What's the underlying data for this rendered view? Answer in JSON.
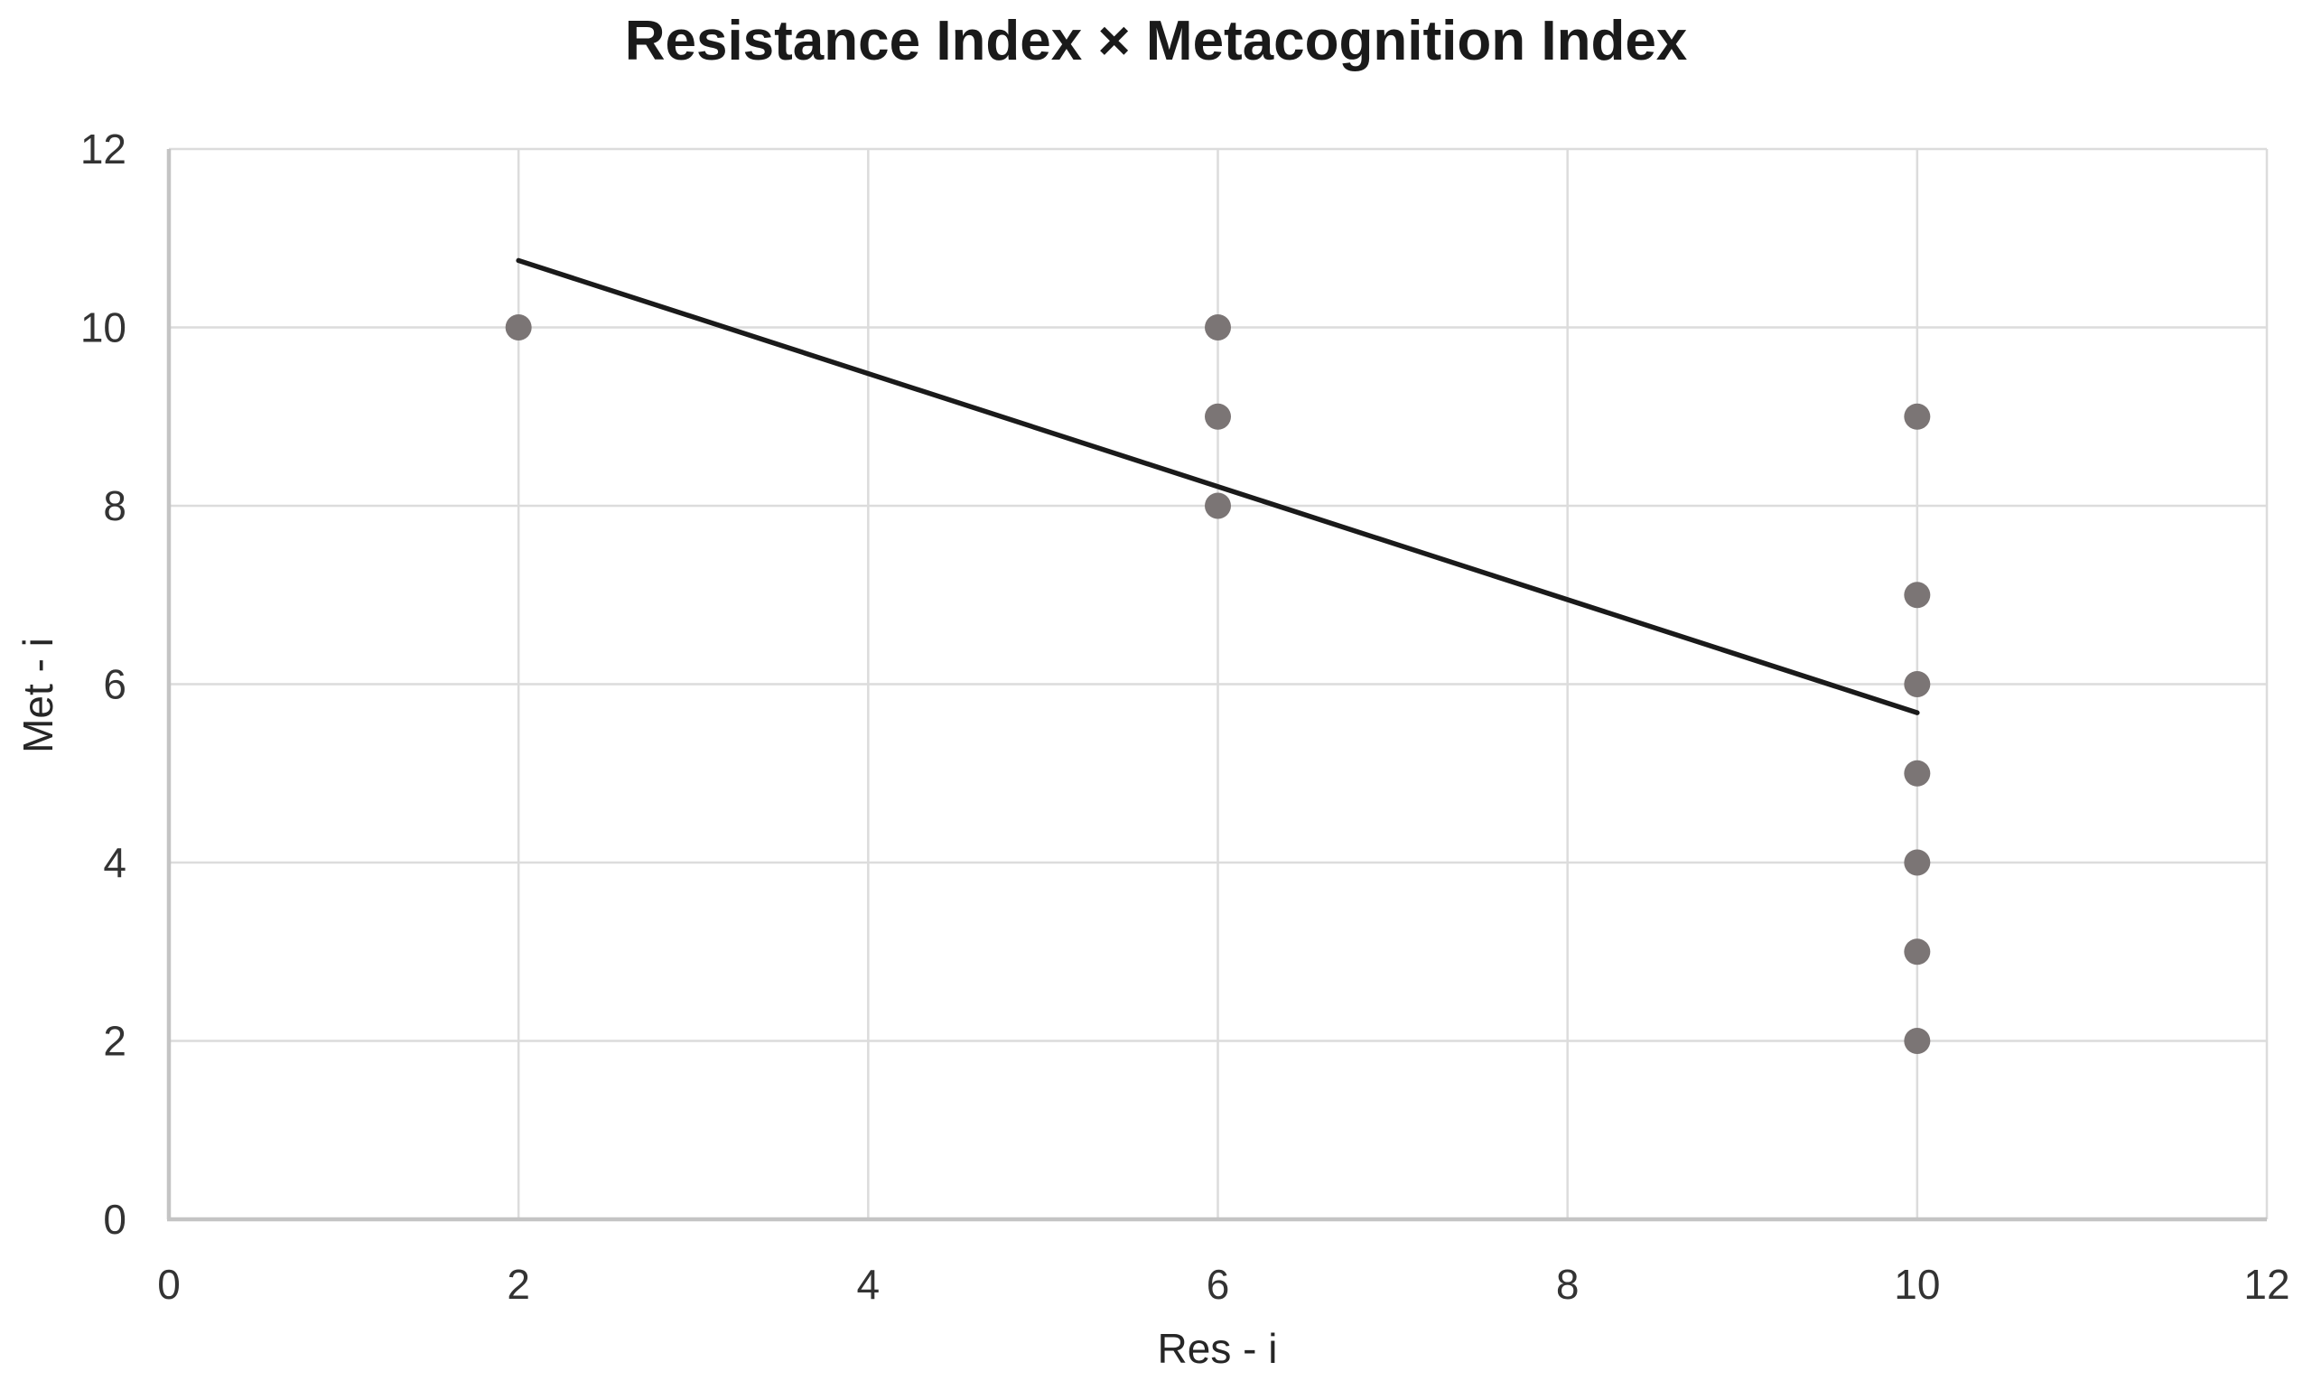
{
  "chart_data": {
    "type": "scatter",
    "title": "Resistance Index × Metacognition Index",
    "xlabel": "Res - i",
    "ylabel": "Met - i",
    "xlim": [
      0,
      12
    ],
    "ylim": [
      0,
      12
    ],
    "xticks": [
      0,
      2,
      4,
      6,
      8,
      10,
      12
    ],
    "yticks": [
      0,
      2,
      4,
      6,
      8,
      10,
      12
    ],
    "grid": true,
    "legend": "none",
    "points": [
      {
        "x": 2,
        "y": 10
      },
      {
        "x": 6,
        "y": 8
      },
      {
        "x": 6,
        "y": 9
      },
      {
        "x": 6,
        "y": 10
      },
      {
        "x": 10,
        "y": 2
      },
      {
        "x": 10,
        "y": 3
      },
      {
        "x": 10,
        "y": 4
      },
      {
        "x": 10,
        "y": 5
      },
      {
        "x": 10,
        "y": 6
      },
      {
        "x": 10,
        "y": 7
      },
      {
        "x": 10,
        "y": 9
      }
    ],
    "trendline": {
      "x1": 2,
      "y1": 10.75,
      "x2": 10,
      "y2": 5.68
    },
    "colors": {
      "point": "#7b7575",
      "trendline": "#1a1a1a",
      "gridline": "#dcdcdc",
      "axis_line": "#c4c4c4",
      "tick_text": "#333333",
      "title_text": "#1a1a1a",
      "background": "#ffffff"
    }
  }
}
